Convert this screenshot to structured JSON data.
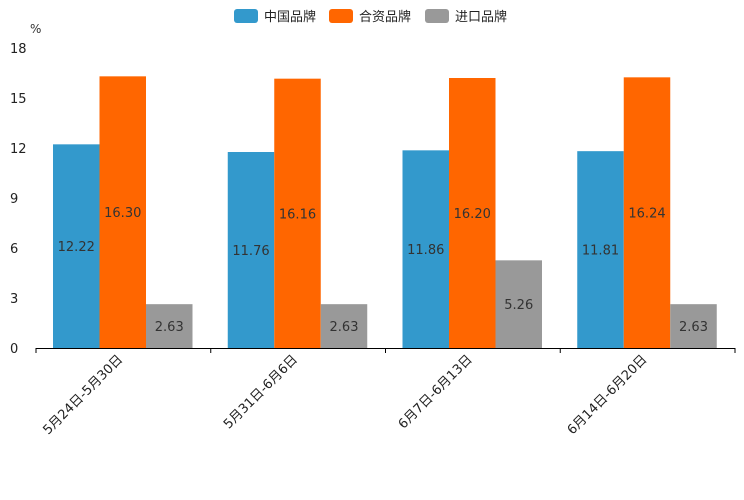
{
  "chart_data": {
    "type": "bar",
    "unit_label": "%",
    "categories": [
      "5月24日-5月30日",
      "5月31日-6月6日",
      "6月7日-6月13日",
      "6月14日-6月20日"
    ],
    "series": [
      {
        "name": "中国品牌",
        "color": "#3399cc",
        "values": [
          12.22,
          11.76,
          11.86,
          11.81
        ],
        "labels": [
          "12.22",
          "11.76",
          "11.86",
          "11.81"
        ]
      },
      {
        "name": "合资品牌",
        "color": "#ff6600",
        "values": [
          16.3,
          16.16,
          16.2,
          16.24
        ],
        "labels": [
          "16.30",
          "16.16",
          "16.20",
          "16.24"
        ]
      },
      {
        "name": "进口品牌",
        "color": "#999999",
        "values": [
          2.63,
          2.63,
          5.26,
          2.63
        ],
        "labels": [
          "2.63",
          "2.63",
          "5.26",
          "2.63"
        ]
      }
    ],
    "ylim": [
      0,
      18
    ],
    "yticks": [
      0,
      3,
      6,
      9,
      12,
      15,
      18
    ],
    "legend": "top-center",
    "grid": false
  }
}
